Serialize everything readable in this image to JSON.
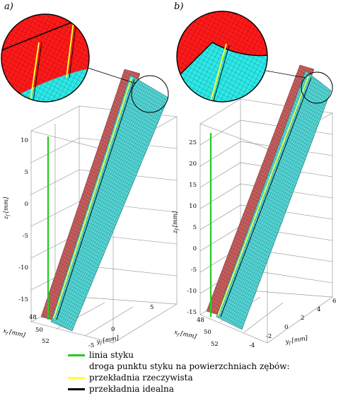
{
  "panels": [
    {
      "label": "a)",
      "z_label": "z",
      "z_sub": "f",
      "z_unit": "[mm]",
      "z_ticks": [
        "10",
        "5",
        "0",
        "-5",
        "-10",
        "-15"
      ],
      "x_label": "x",
      "x_sub": "f",
      "x_unit": "[mm]",
      "x_ticks": [
        "48",
        "50",
        "52"
      ],
      "y_label": "y",
      "y_sub": "f",
      "y_unit": "[mm]",
      "y_ticks": [
        "-5",
        "0",
        "5"
      ]
    },
    {
      "label": "b)",
      "z_label": "z",
      "z_sub": "f",
      "z_unit": "[mm]",
      "z_ticks": [
        "25",
        "20",
        "15",
        "10",
        "5",
        "0",
        "-5",
        "-10",
        "-15"
      ],
      "x_label": "x",
      "x_sub": "f",
      "x_unit": "[mm]",
      "x_ticks": [
        "48",
        "50",
        "52"
      ],
      "y_label": "y",
      "y_sub": "f",
      "y_unit": "[mm]",
      "y_ticks": [
        "-4",
        "-2",
        "0",
        "2",
        "4",
        "6"
      ]
    }
  ],
  "colors": {
    "contact_line": "#22cc22",
    "real_gear": "#ffff33",
    "ideal_gear": "#000000",
    "surface_red": "#ff1a1a",
    "surface_red_3d": "#c96060",
    "surface_cyan": "#2ee8e8"
  },
  "legend": {
    "contact_line": "linia styku",
    "heading": "droga punktu styku na powierzchniach zębów:",
    "real_gear": "przekładnia rzeczywista",
    "ideal_gear": "przekładnia idealna"
  }
}
